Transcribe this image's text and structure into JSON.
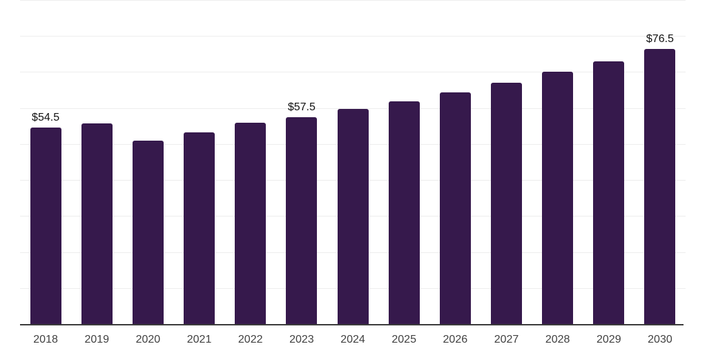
{
  "chart_data": {
    "type": "bar",
    "categories": [
      "2018",
      "2019",
      "2020",
      "2021",
      "2022",
      "2023",
      "2024",
      "2025",
      "2026",
      "2027",
      "2028",
      "2029",
      "2030"
    ],
    "values": [
      54.5,
      55.7,
      51.0,
      53.3,
      55.9,
      57.5,
      59.8,
      61.9,
      64.4,
      67.0,
      70.0,
      73.0,
      76.5
    ],
    "bar_labels": [
      "$54.5",
      "",
      "",
      "",
      "",
      "$57.5",
      "",
      "",
      "",
      "",
      "",
      "",
      "$76.5"
    ],
    "ylim": [
      0,
      90
    ],
    "gridline_step": 10,
    "grid": true,
    "legend": false,
    "colors": {
      "bar": "#36194c",
      "gridline": "#ededed",
      "axis_line": "#3b3b3b",
      "value_label": "#111111",
      "tick_label": "#414141",
      "background": "#ffffff"
    }
  }
}
